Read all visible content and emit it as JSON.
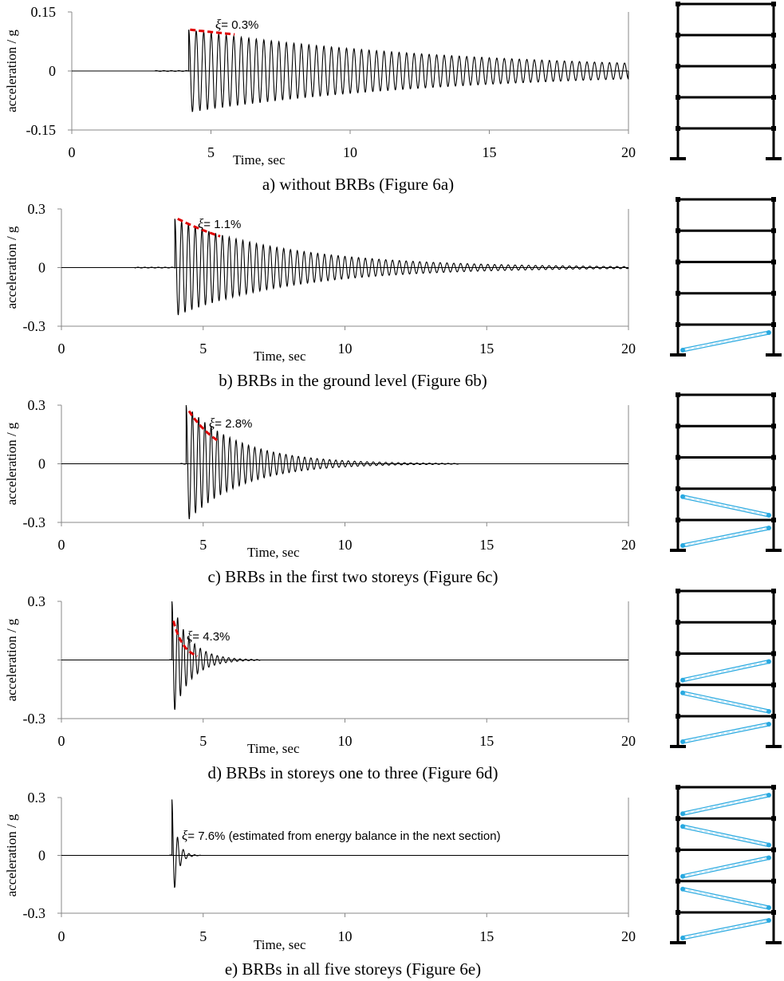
{
  "figure": {
    "panels": [
      {
        "id": "a",
        "caption": "a) without BRBs (Figure 6a)",
        "annotation": "= 0.3%"
      },
      {
        "id": "b",
        "caption": "b) BRBs in the ground level (Figure 6b)",
        "annotation": "= 1.1%"
      },
      {
        "id": "c",
        "caption": "c) BRBs in the first two storeys (Figure 6c)",
        "annotation": "= 2.8%"
      },
      {
        "id": "d",
        "caption": "d) BRBs in storeys one to three (Figure 6d)",
        "annotation": "= 4.3%"
      },
      {
        "id": "e",
        "caption": "e) BRBs in all five storeys (Figure 6e)",
        "annotation": "= 7.6% (estimated from energy balance in the next section)"
      }
    ]
  },
  "chart_data": [
    {
      "type": "line",
      "panel": "a",
      "ylabel": "acceleration / g",
      "xlabel": "Time, sec",
      "xlim": [
        0,
        20
      ],
      "ylim": [
        -0.15,
        0.15
      ],
      "xticks": [
        "0",
        "5",
        "10",
        "15",
        "20"
      ],
      "yticks": [
        "0.15",
        "0",
        "-0.15"
      ],
      "annotation_symbol": "ξ",
      "damping_ratio_percent": 0.3,
      "signal": {
        "pre_start": 3.0,
        "start": 4.2,
        "end": 20,
        "peak": 0.105,
        "final_amplitude": 0.02,
        "period": 0.27
      },
      "decay_fit": {
        "t_start": 4.25,
        "t_end": 5.85,
        "a_start": 0.105,
        "a_end": 0.093
      },
      "storeys": 5,
      "brb_storeys": []
    },
    {
      "type": "line",
      "panel": "b",
      "ylabel": "acceleration / g",
      "xlabel": "Time, sec",
      "xlim": [
        0,
        20
      ],
      "ylim": [
        -0.3,
        0.3
      ],
      "xticks": [
        "0",
        "5",
        "10",
        "15",
        "20"
      ],
      "yticks": [
        "0.3",
        "0",
        "-0.3"
      ],
      "annotation_symbol": "ξ",
      "damping_ratio_percent": 1.1,
      "signal": {
        "pre_start": 2.6,
        "start": 4.0,
        "end": 20,
        "peak": 0.25,
        "final_amplitude": 0.005,
        "period": 0.24
      },
      "decay_fit": {
        "t_start": 4.1,
        "t_end": 5.6,
        "a_start": 0.25,
        "a_end": 0.16
      },
      "storeys": 5,
      "brb_storeys": [
        1
      ]
    },
    {
      "type": "line",
      "panel": "c",
      "ylabel": "acceleration / g",
      "xlabel": "Time, sec",
      "xlim": [
        0,
        20
      ],
      "ylim": [
        -0.3,
        0.3
      ],
      "xticks": [
        "0",
        "5",
        "10",
        "15",
        "20"
      ],
      "yticks": [
        "0.3",
        "0",
        "-0.3"
      ],
      "annotation_symbol": "ξ",
      "damping_ratio_percent": 2.8,
      "signal": {
        "pre_start": 4.2,
        "start": 4.4,
        "end": 14,
        "peak": 0.3,
        "final_amplitude": 0.002,
        "period": 0.22
      },
      "decay_fit": {
        "t_start": 4.5,
        "t_end": 5.5,
        "a_start": 0.27,
        "a_end": 0.12
      },
      "storeys": 5,
      "brb_storeys": [
        1,
        2
      ]
    },
    {
      "type": "line",
      "panel": "d",
      "ylabel": "acceleration / g",
      "xlabel": "Time, sec",
      "xlim": [
        0,
        20
      ],
      "ylim": [
        -0.3,
        0.3
      ],
      "xticks": [
        "0",
        "5",
        "10",
        "15",
        "20"
      ],
      "yticks": [
        "0.3",
        "",
        "-0.3"
      ],
      "annotation_symbol": "ξ",
      "damping_ratio_percent": 4.3,
      "signal": {
        "pre_start": 3.8,
        "start": 3.9,
        "end": 7,
        "peak": 0.3,
        "final_amplitude": 0.002,
        "period": 0.2
      },
      "decay_fit": {
        "t_start": 3.95,
        "t_end": 4.8,
        "a_start": 0.2,
        "a_end": 0.02
      },
      "storeys": 5,
      "brb_storeys": [
        1,
        2,
        3
      ]
    },
    {
      "type": "line",
      "panel": "e",
      "ylabel": "acceleration / g",
      "xlabel": "Time, sec",
      "xlim": [
        0,
        20
      ],
      "ylim": [
        -0.3,
        0.3
      ],
      "xticks": [
        "0",
        "5",
        "10",
        "15",
        "20"
      ],
      "yticks": [
        "0.3",
        "0",
        "-0.3"
      ],
      "annotation_symbol": "ξ",
      "damping_ratio_percent": 7.6,
      "signal": {
        "pre_start": 3.8,
        "start": 3.9,
        "end": 4.9,
        "peak": 0.29,
        "final_amplitude": 0.001,
        "period": 0.2
      },
      "decay_fit": null,
      "storeys": 5,
      "brb_storeys": [
        1,
        2,
        3,
        4,
        5
      ]
    }
  ]
}
